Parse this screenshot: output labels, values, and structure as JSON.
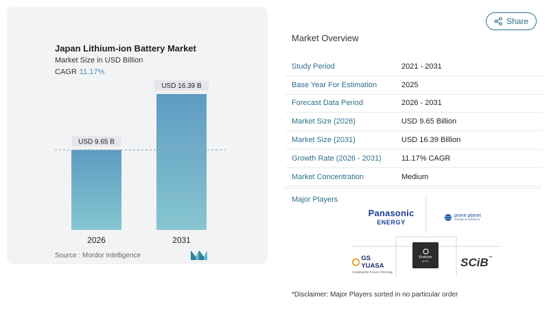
{
  "chart_data": {
    "type": "bar",
    "title": "Japan Lithium-ion Battery Market",
    "subtitle": "Market Size in USD Billion",
    "cagr_label": "CAGR",
    "cagr_value": "11.17%",
    "categories": [
      "2026",
      "2031"
    ],
    "values": [
      9.65,
      16.39
    ],
    "data_labels": [
      "USD 9.65 B",
      "USD 16.39 B"
    ],
    "ylim": [
      0,
      16.39
    ],
    "grid": false,
    "colors": {
      "bar_top": "#5f9bc3",
      "bar_bottom": "#86c6cf"
    }
  },
  "source": "Source :  Mordor Intelligence",
  "share_label": "Share",
  "overview": {
    "title": "Market Overview",
    "rows": [
      {
        "label": "Study Period",
        "value": "2021 - 2031"
      },
      {
        "label": "Base Year For Estimation",
        "value": "2025"
      },
      {
        "label": "Forecast Data Period",
        "value": "2026 - 2031"
      },
      {
        "label": "Market Size (2026)",
        "value": "USD 9.65 Billion"
      },
      {
        "label": "Market Size (2031)",
        "value": "USD 16.39 Billion"
      },
      {
        "label": "Growth Rate (2026 - 2031)",
        "value": "11.17% CAGR"
      },
      {
        "label": "Market Concentration",
        "value": "Medium"
      }
    ]
  },
  "players": {
    "label": "Major Players",
    "panasonic": {
      "line1": "Panasonic",
      "line2": "ENERGY"
    },
    "primeplanet": {
      "line1": "prime planet",
      "line2": "energy & solutions"
    },
    "gsyuasa": {
      "line1": "GS YUASA",
      "line2": "Creating the Future of Energy"
    },
    "envision": {
      "line1": "Envision",
      "line2": "AESC"
    },
    "scib": {
      "line1": "SCiB",
      "tm": "™"
    }
  },
  "disclaimer": "*Disclaimer: Major Players sorted in no particular order"
}
